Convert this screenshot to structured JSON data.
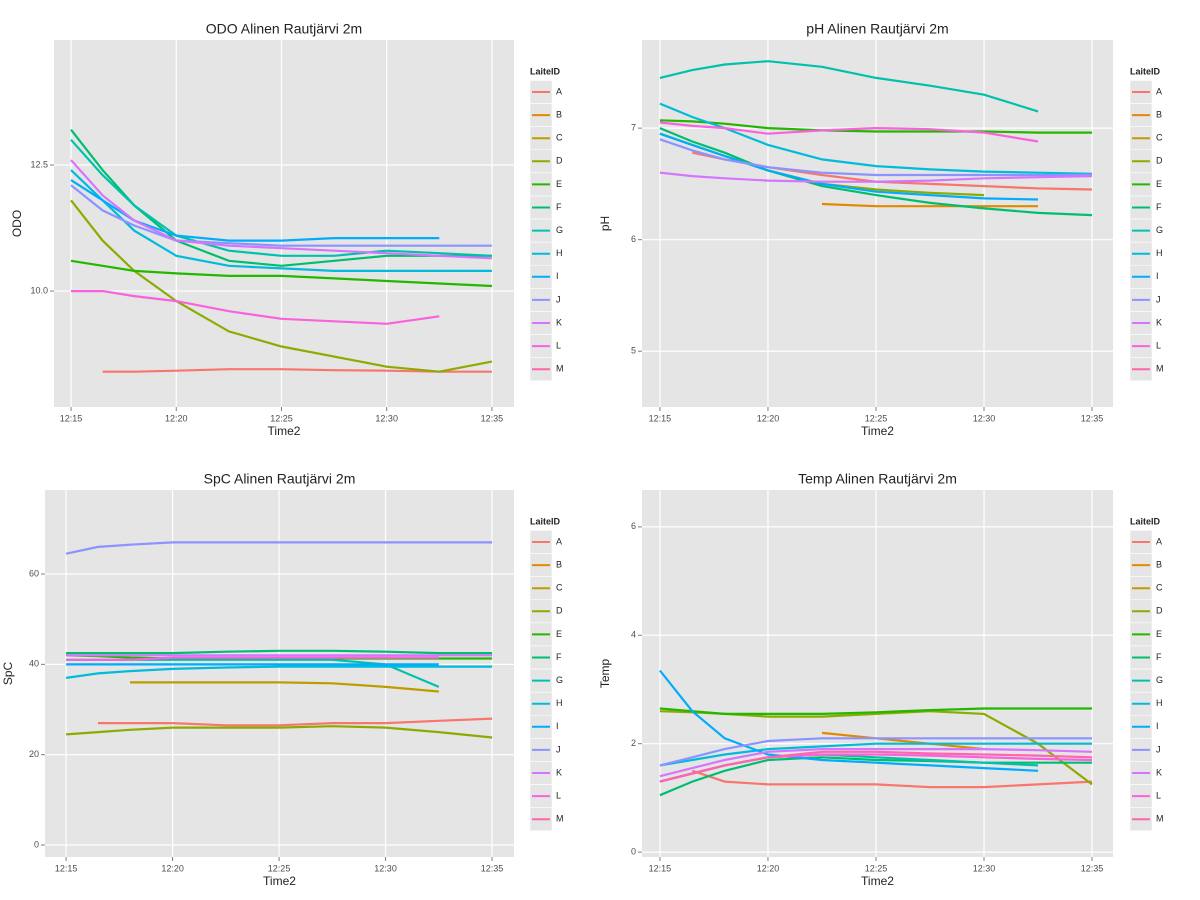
{
  "chart_data": [
    {
      "type": "line",
      "title": "ODO Alinen Rautjärvi 2m",
      "x_label": "Time2",
      "y_label": "ODO",
      "legend_title": "LaiteID",
      "grid": true,
      "x": [
        735,
        736.5,
        738,
        740,
        742.5,
        745,
        747.5,
        750,
        752.5,
        755
      ],
      "xlim": [
        734.19,
        756.05
      ],
      "xticks": [
        {
          "value": 735,
          "label": "12:15"
        },
        {
          "value": 740,
          "label": "12:20"
        },
        {
          "value": 745,
          "label": "12:25"
        },
        {
          "value": 750,
          "label": "12:30"
        },
        {
          "value": 755,
          "label": "12:35"
        }
      ],
      "ylim": [
        7.7,
        14.98
      ],
      "yticks": [
        {
          "value": 10,
          "label": "10.0"
        },
        {
          "value": 12.5,
          "label": "12.5"
        }
      ],
      "series": [
        {
          "name": "A",
          "color": "#F8766D",
          "values": [
            null,
            8.4,
            8.4,
            8.42,
            8.45,
            8.45,
            8.43,
            8.42,
            8.4,
            8.4
          ]
        },
        {
          "name": "B",
          "color": "#E18A00",
          "values": [
            null,
            null,
            null,
            null,
            null,
            null,
            null,
            null,
            null,
            null
          ]
        },
        {
          "name": "C",
          "color": "#BE9C00",
          "values": [
            null,
            null,
            null,
            null,
            null,
            null,
            null,
            null,
            null,
            null
          ]
        },
        {
          "name": "D",
          "color": "#8CAB00",
          "values": [
            11.8,
            11.0,
            10.4,
            9.8,
            9.2,
            8.9,
            8.7,
            8.5,
            8.4,
            8.6
          ]
        },
        {
          "name": "E",
          "color": "#24B700",
          "values": [
            10.6,
            10.5,
            10.4,
            10.35,
            10.3,
            10.3,
            10.25,
            10.2,
            10.15,
            10.1
          ]
        },
        {
          "name": "F",
          "color": "#00BE70",
          "values": [
            13.2,
            12.4,
            11.7,
            11.0,
            10.6,
            10.5,
            10.6,
            10.7,
            10.7,
            10.7
          ]
        },
        {
          "name": "G",
          "color": "#00C1AB",
          "values": [
            13.0,
            12.3,
            11.7,
            11.1,
            10.8,
            10.7,
            10.7,
            10.8,
            10.75,
            10.7
          ]
        },
        {
          "name": "H",
          "color": "#00BBDA",
          "values": [
            12.4,
            11.8,
            11.2,
            10.7,
            10.5,
            10.45,
            10.4,
            10.4,
            10.4,
            10.4
          ]
        },
        {
          "name": "I",
          "color": "#00ACFC",
          "values": [
            12.2,
            11.8,
            11.4,
            11.1,
            11.0,
            11.0,
            11.05,
            11.05,
            11.05,
            null
          ]
        },
        {
          "name": "J",
          "color": "#8B93FF",
          "values": [
            12.1,
            11.6,
            11.3,
            11.0,
            10.95,
            10.9,
            10.9,
            10.9,
            10.9,
            10.9
          ]
        },
        {
          "name": "K",
          "color": "#D575FE",
          "values": [
            12.6,
            11.9,
            11.4,
            11.0,
            10.9,
            10.85,
            10.8,
            10.75,
            10.7,
            10.65
          ]
        },
        {
          "name": "L",
          "color": "#F962DD",
          "values": [
            10.0,
            10.0,
            9.9,
            9.8,
            9.6,
            9.45,
            9.4,
            9.35,
            9.5,
            null
          ]
        },
        {
          "name": "M",
          "color": "#FF65AC",
          "values": [
            null,
            null,
            null,
            null,
            null,
            null,
            null,
            null,
            null,
            null
          ]
        }
      ]
    },
    {
      "type": "line",
      "title": "pH Alinen Rautjärvi 2m",
      "x_label": "Time2",
      "y_label": "pH",
      "legend_title": "LaiteID",
      "grid": true,
      "x": [
        735,
        736.5,
        738,
        740,
        742.5,
        745,
        747.5,
        750,
        752.5,
        755
      ],
      "xlim": [
        734.17,
        755.97
      ],
      "xticks": [
        {
          "value": 735,
          "label": "12:15"
        },
        {
          "value": 740,
          "label": "12:20"
        },
        {
          "value": 745,
          "label": "12:25"
        },
        {
          "value": 750,
          "label": "12:30"
        },
        {
          "value": 755,
          "label": "12:35"
        }
      ],
      "ylim": [
        4.5,
        7.79
      ],
      "yticks": [
        5,
        6,
        7
      ],
      "series": [
        {
          "name": "A",
          "color": "#F8766D",
          "values": [
            null,
            6.78,
            6.72,
            6.65,
            6.58,
            6.52,
            6.5,
            6.48,
            6.46,
            6.45
          ]
        },
        {
          "name": "B",
          "color": "#E18A00",
          "values": [
            null,
            null,
            null,
            null,
            6.32,
            6.3,
            6.3,
            6.3,
            6.3,
            null
          ]
        },
        {
          "name": "C",
          "color": "#BE9C00",
          "values": [
            null,
            null,
            null,
            null,
            null,
            null,
            null,
            null,
            null,
            null
          ]
        },
        {
          "name": "D",
          "color": "#8CAB00",
          "values": [
            6.95,
            6.85,
            6.75,
            6.62,
            6.5,
            6.45,
            6.42,
            6.4,
            null,
            null
          ]
        },
        {
          "name": "E",
          "color": "#24B700",
          "values": [
            7.07,
            7.06,
            7.04,
            7.0,
            6.98,
            6.97,
            6.97,
            6.97,
            6.96,
            6.96
          ]
        },
        {
          "name": "F",
          "color": "#00BE70",
          "values": [
            7.0,
            6.88,
            6.78,
            6.62,
            6.48,
            6.4,
            6.33,
            6.28,
            6.24,
            6.22
          ]
        },
        {
          "name": "G",
          "color": "#00C1AB",
          "values": [
            7.45,
            7.52,
            7.57,
            7.6,
            7.55,
            7.45,
            7.38,
            7.3,
            7.15,
            null
          ]
        },
        {
          "name": "H",
          "color": "#00BBDA",
          "values": [
            7.22,
            7.1,
            7.0,
            6.85,
            6.72,
            6.66,
            6.63,
            6.61,
            6.6,
            6.59
          ]
        },
        {
          "name": "I",
          "color": "#00ACFC",
          "values": [
            6.95,
            6.85,
            6.75,
            6.62,
            6.5,
            6.43,
            6.4,
            6.37,
            6.36,
            null
          ]
        },
        {
          "name": "J",
          "color": "#8B93FF",
          "values": [
            6.9,
            6.8,
            6.72,
            6.65,
            6.6,
            6.58,
            6.58,
            6.58,
            6.58,
            6.58
          ]
        },
        {
          "name": "K",
          "color": "#D575FE",
          "values": [
            6.6,
            6.57,
            6.55,
            6.53,
            6.52,
            6.52,
            6.53,
            6.55,
            6.56,
            6.57
          ]
        },
        {
          "name": "L",
          "color": "#F962DD",
          "values": [
            7.05,
            7.02,
            7.0,
            6.95,
            6.98,
            7.0,
            6.99,
            6.96,
            6.88,
            null
          ]
        },
        {
          "name": "M",
          "color": "#FF65AC",
          "values": [
            null,
            null,
            null,
            null,
            null,
            null,
            null,
            null,
            null,
            null
          ]
        }
      ]
    },
    {
      "type": "line",
      "title": "SpC Alinen Rautjärvi 2m",
      "x_label": "Time2",
      "y_label": "SpC",
      "legend_title": "LaiteID",
      "grid": true,
      "x": [
        735,
        736.5,
        738,
        740,
        742.5,
        745,
        747.5,
        750,
        752.5,
        755
      ],
      "xlim": [
        734.01,
        756.03
      ],
      "xticks": [
        {
          "value": 735,
          "label": "12:15"
        },
        {
          "value": 740,
          "label": "12:20"
        },
        {
          "value": 745,
          "label": "12:25"
        },
        {
          "value": 750,
          "label": "12:30"
        },
        {
          "value": 755,
          "label": "12:35"
        }
      ],
      "ylim": [
        -2.65,
        78.6
      ],
      "yticks": [
        0,
        20,
        40,
        60
      ],
      "series": [
        {
          "name": "A",
          "color": "#F8766D",
          "values": [
            null,
            27,
            27,
            27,
            26.5,
            26.5,
            27,
            27,
            27.5,
            28
          ]
        },
        {
          "name": "B",
          "color": "#E18A00",
          "values": [
            null,
            null,
            null,
            null,
            null,
            null,
            null,
            null,
            null,
            null
          ]
        },
        {
          "name": "C",
          "color": "#BE9C00",
          "values": [
            null,
            null,
            36,
            36,
            36,
            36,
            35.8,
            35,
            34,
            null
          ]
        },
        {
          "name": "D",
          "color": "#8CAB00",
          "values": [
            24.5,
            25,
            25.5,
            26,
            26,
            26,
            26.3,
            26,
            25,
            23.8
          ]
        },
        {
          "name": "E",
          "color": "#24B700",
          "values": [
            42,
            41.8,
            41.5,
            41.3,
            41.3,
            41.3,
            41.3,
            41.3,
            41.3,
            41.3
          ]
        },
        {
          "name": "F",
          "color": "#00BE70",
          "values": [
            42.5,
            42.5,
            42.5,
            42.5,
            42.8,
            43,
            43,
            42.8,
            42.5,
            42.5
          ]
        },
        {
          "name": "G",
          "color": "#00C1AB",
          "values": [
            41,
            41,
            41,
            41,
            41,
            41,
            41,
            40,
            35,
            null
          ]
        },
        {
          "name": "H",
          "color": "#00BBDA",
          "values": [
            37,
            38,
            38.5,
            39,
            39.3,
            39.5,
            39.5,
            39.5,
            39.5,
            39.5
          ]
        },
        {
          "name": "I",
          "color": "#00ACFC",
          "values": [
            40,
            40,
            40,
            40,
            40,
            40,
            40,
            40,
            40,
            null
          ]
        },
        {
          "name": "J",
          "color": "#8B93FF",
          "values": [
            64.5,
            66,
            66.5,
            67,
            67,
            67,
            67,
            67,
            67,
            67
          ]
        },
        {
          "name": "K",
          "color": "#D575FE",
          "values": [
            42,
            42,
            42,
            42,
            42,
            42,
            42,
            42,
            42,
            42
          ]
        },
        {
          "name": "L",
          "color": "#F962DD",
          "values": [
            41,
            41,
            41,
            41.5,
            41.5,
            41.5,
            41.5,
            41.5,
            41.5,
            null
          ]
        },
        {
          "name": "M",
          "color": "#FF65AC",
          "values": [
            null,
            null,
            null,
            null,
            null,
            null,
            null,
            null,
            null,
            null
          ]
        }
      ]
    },
    {
      "type": "line",
      "title": "Temp Alinen Rautjärvi 2m",
      "x_label": "Time2",
      "y_label": "Temp",
      "legend_title": "LaiteID",
      "grid": true,
      "x": [
        735,
        736.5,
        738,
        740,
        742.5,
        745,
        747.5,
        750,
        752.5,
        755
      ],
      "xlim": [
        734.17,
        755.97
      ],
      "xticks": [
        {
          "value": 735,
          "label": "12:15"
        },
        {
          "value": 740,
          "label": "12:20"
        },
        {
          "value": 745,
          "label": "12:25"
        },
        {
          "value": 750,
          "label": "12:30"
        },
        {
          "value": 755,
          "label": "12:35"
        }
      ],
      "ylim": [
        -0.09,
        6.68
      ],
      "yticks": [
        0,
        2,
        4,
        6
      ],
      "series": [
        {
          "name": "A",
          "color": "#F8766D",
          "values": [
            null,
            1.5,
            1.3,
            1.25,
            1.25,
            1.25,
            1.2,
            1.2,
            1.25,
            1.3
          ]
        },
        {
          "name": "B",
          "color": "#E18A00",
          "values": [
            null,
            null,
            null,
            null,
            2.2,
            2.1,
            2.0,
            1.9,
            null,
            null
          ]
        },
        {
          "name": "C",
          "color": "#BE9C00",
          "values": [
            null,
            null,
            null,
            null,
            null,
            null,
            null,
            null,
            null,
            null
          ]
        },
        {
          "name": "D",
          "color": "#8CAB00",
          "values": [
            2.6,
            2.58,
            2.55,
            2.5,
            2.5,
            2.55,
            2.6,
            2.55,
            2.0,
            1.25
          ]
        },
        {
          "name": "E",
          "color": "#24B700",
          "values": [
            2.65,
            2.6,
            2.55,
            2.55,
            2.55,
            2.58,
            2.62,
            2.65,
            2.65,
            2.65
          ]
        },
        {
          "name": "F",
          "color": "#00BE70",
          "values": [
            1.05,
            1.3,
            1.5,
            1.7,
            1.75,
            1.7,
            1.68,
            1.65,
            1.65,
            1.65
          ]
        },
        {
          "name": "G",
          "color": "#00C1AB",
          "values": [
            1.3,
            1.45,
            1.6,
            1.75,
            1.8,
            1.75,
            1.7,
            1.65,
            1.6,
            null
          ]
        },
        {
          "name": "H",
          "color": "#00BBDA",
          "values": [
            1.6,
            1.7,
            1.8,
            1.9,
            1.95,
            2.0,
            2.0,
            2.0,
            2.0,
            2.0
          ]
        },
        {
          "name": "I",
          "color": "#00ACFC",
          "values": [
            3.35,
            2.6,
            2.1,
            1.8,
            1.7,
            1.65,
            1.6,
            1.55,
            1.5,
            null
          ]
        },
        {
          "name": "J",
          "color": "#8B93FF",
          "values": [
            1.6,
            1.75,
            1.9,
            2.05,
            2.1,
            2.1,
            2.1,
            2.1,
            2.1,
            2.1
          ]
        },
        {
          "name": "K",
          "color": "#D575FE",
          "values": [
            1.4,
            1.55,
            1.7,
            1.85,
            1.9,
            1.9,
            1.9,
            1.9,
            1.88,
            1.85
          ]
        },
        {
          "name": "L",
          "color": "#F962DD",
          "values": [
            1.3,
            1.45,
            1.6,
            1.75,
            1.8,
            1.8,
            1.78,
            1.75,
            1.72,
            1.7
          ]
        },
        {
          "name": "M",
          "color": "#FF65AC",
          "values": [
            1.3,
            1.45,
            1.6,
            1.75,
            1.85,
            1.85,
            1.82,
            1.8,
            1.78,
            1.75
          ]
        }
      ]
    }
  ]
}
